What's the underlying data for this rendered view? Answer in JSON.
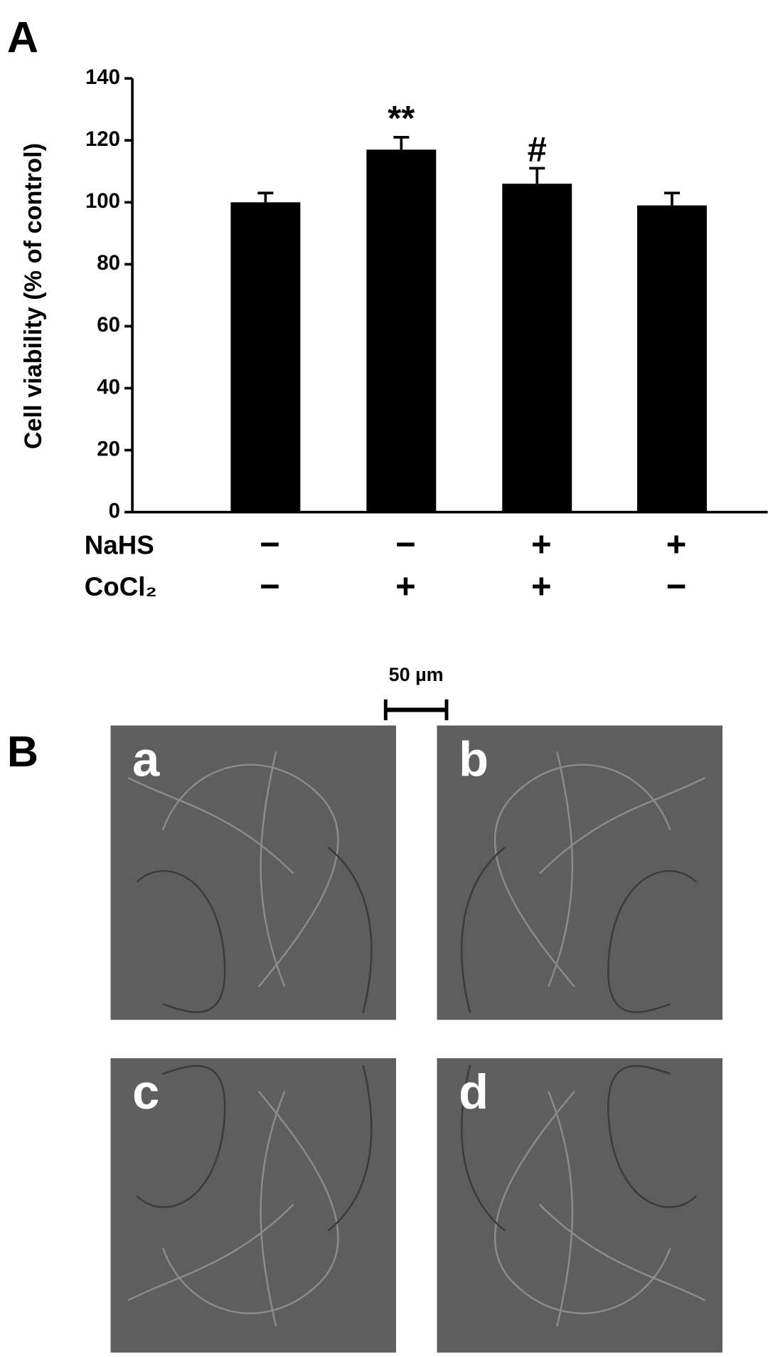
{
  "panel_a": {
    "label": "A"
  },
  "chart_data": {
    "type": "bar",
    "y_label": "Cell viability (% of control)",
    "categories": [
      null,
      null,
      null,
      null
    ],
    "values": [
      100,
      117,
      106,
      99
    ],
    "errors": [
      3,
      4,
      5,
      4
    ],
    "annotations": [
      null,
      "**",
      "#",
      null
    ],
    "color": "#000000",
    "ylim": [
      0,
      140
    ],
    "yticks": [
      0,
      20,
      40,
      60,
      80,
      100,
      120,
      140
    ],
    "treatments": [
      {
        "label": "NaHS",
        "values": [
          "−",
          "−",
          "+",
          "+"
        ]
      },
      {
        "label": "CoCl₂",
        "values": [
          "−",
          "+",
          "+",
          "−"
        ]
      }
    ]
  },
  "panel_b": {
    "label": "B",
    "scale_bar": "50 µm",
    "images": [
      {
        "letter": "a"
      },
      {
        "letter": "b"
      },
      {
        "letter": "c"
      },
      {
        "letter": "d"
      }
    ]
  }
}
